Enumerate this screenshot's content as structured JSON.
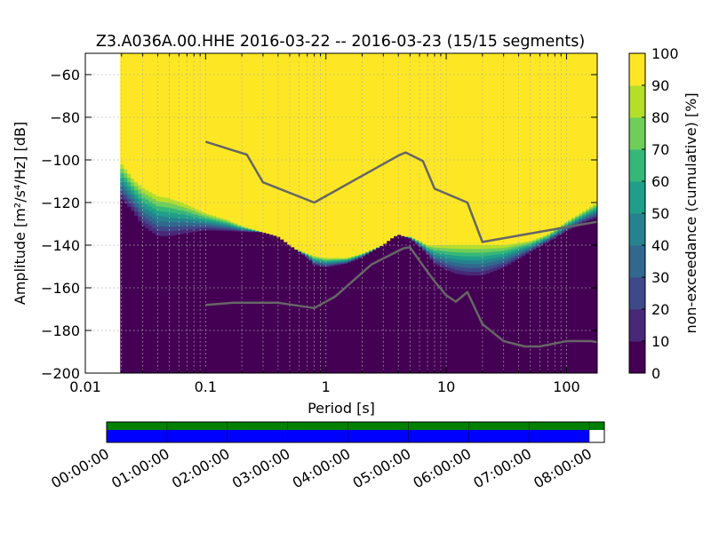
{
  "chart_data": {
    "type": "heatmap",
    "title": "Z3.A036A.00.HHE   2016-03-22 -- 2016-03-23  (15/15 segments)",
    "xlabel": "Period [s]",
    "ylabel": "Amplitude [m²/s⁴/Hz] [dB]",
    "x_scale": "log",
    "xlim": [
      0.01,
      180
    ],
    "ylim": [
      -200,
      -50
    ],
    "x_ticks": [
      {
        "value": 0.01,
        "label": "0.01"
      },
      {
        "value": 0.1,
        "label": "0.1"
      },
      {
        "value": 1,
        "label": "1"
      },
      {
        "value": 10,
        "label": "10"
      },
      {
        "value": 100,
        "label": "100"
      }
    ],
    "y_ticks": [
      {
        "value": -60,
        "label": "−60"
      },
      {
        "value": -80,
        "label": "−80"
      },
      {
        "value": -100,
        "label": "−100"
      },
      {
        "value": -120,
        "label": "−120"
      },
      {
        "value": -140,
        "label": "−140"
      },
      {
        "value": -160,
        "label": "−160"
      },
      {
        "value": -180,
        "label": "−180"
      },
      {
        "value": -200,
        "label": "−200"
      }
    ],
    "grid": true,
    "data_period_start": 0.0195,
    "colorbar": {
      "label": "non-exceedance (cumulative) [%]",
      "range": [
        0,
        100
      ],
      "ticks": [
        {
          "value": 0,
          "label": "0"
        },
        {
          "value": 10,
          "label": "10"
        },
        {
          "value": 20,
          "label": "20"
        },
        {
          "value": 30,
          "label": "30"
        },
        {
          "value": 40,
          "label": "40"
        },
        {
          "value": 50,
          "label": "50"
        },
        {
          "value": 60,
          "label": "60"
        },
        {
          "value": 70,
          "label": "70"
        },
        {
          "value": 80,
          "label": "80"
        },
        {
          "value": 90,
          "label": "90"
        },
        {
          "value": 100,
          "label": "100"
        }
      ],
      "colormap": [
        "#440154",
        "#482878",
        "#3e4989",
        "#31688e",
        "#26828e",
        "#1f9e89",
        "#35b779",
        "#6ece58",
        "#b5de2b",
        "#fde725"
      ]
    },
    "distribution_edges": {
      "period": [
        0.0195,
        0.025,
        0.03,
        0.04,
        0.05,
        0.07,
        0.1,
        0.15,
        0.2,
        0.3,
        0.4,
        0.5,
        0.7,
        0.8,
        1,
        1.5,
        2,
        3,
        3.5,
        4,
        5,
        6,
        7,
        8,
        10,
        12,
        15,
        20,
        30,
        50,
        70,
        100,
        140,
        180
      ],
      "bottom": [
        -120,
        -126,
        -133,
        -138,
        -138,
        -136,
        -134,
        -134,
        -134,
        -134,
        -136,
        -140,
        -146,
        -150,
        -151,
        -149,
        -146,
        -140,
        -137,
        -135,
        -137,
        -141,
        -145,
        -150,
        -153,
        -155,
        -156,
        -156,
        -152,
        -144,
        -139,
        -134,
        -130,
        -128
      ],
      "top": [
        -101,
        -109,
        -113,
        -117,
        -118,
        -121,
        -125,
        -128,
        -131,
        -134,
        -138,
        -141,
        -144,
        -145,
        -146,
        -146,
        -144,
        -140,
        -138,
        -136,
        -136,
        -138,
        -140,
        -140,
        -140,
        -140,
        -140,
        -140,
        -140,
        -138,
        -135,
        -129,
        -124,
        -120
      ]
    },
    "series": [
      {
        "color": "#666666",
        "x": [
          0.1,
          0.22,
          0.3,
          0.8,
          4,
          4.6,
          6.4,
          8,
          15,
          20,
          180
        ],
        "y": [
          -91.5,
          -97.5,
          -110.5,
          -120,
          -98,
          -96.5,
          -100.5,
          -113.5,
          -120,
          -138.5,
          -129
        ]
      },
      {
        "color": "#666666",
        "x": [
          0.1,
          0.17,
          0.4,
          0.8,
          1.2,
          2.4,
          4.4,
          5,
          6.4,
          8,
          10,
          12,
          15,
          20,
          30,
          45,
          60,
          100,
          160,
          180
        ],
        "y": [
          -168,
          -167,
          -167,
          -169.5,
          -164,
          -149,
          -141.5,
          -141,
          -149.5,
          -157,
          -163.5,
          -166.5,
          -162,
          -177,
          -185,
          -187.5,
          -187.5,
          -185,
          -185,
          -185.5
        ]
      }
    ]
  },
  "data_availability": {
    "time_ticks": [
      "00:00:00",
      "01:00:00",
      "02:00:00",
      "03:00:00",
      "04:00:00",
      "05:00:00",
      "06:00:00",
      "07:00:00",
      "08:00:00"
    ],
    "time_range_hours": [
      0,
      8.25
    ],
    "coverage_end_green": 8.25,
    "coverage_end_blue": 8.0,
    "colors": {
      "top": "#008000",
      "bottom": "#0000ff"
    }
  }
}
